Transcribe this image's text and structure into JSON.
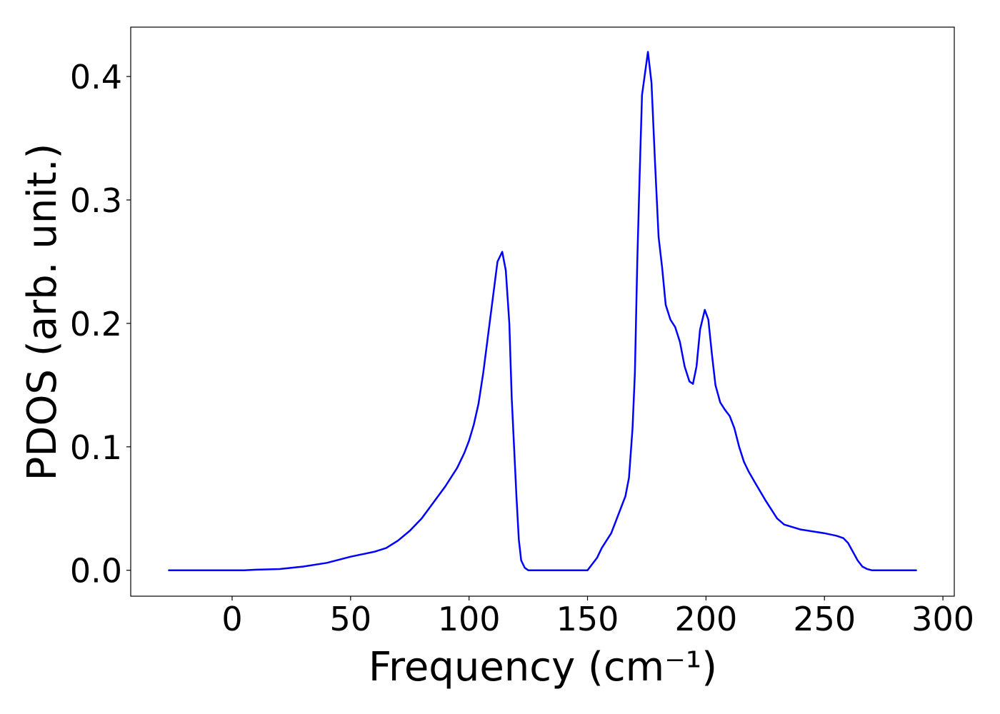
{
  "chart_data": {
    "type": "line",
    "x_label": "Frequency (cm⁻¹)",
    "y_label": "PDOS (arb. unit.)",
    "xlim": [
      -42.8,
      304.8
    ],
    "ylim": [
      -0.021,
      0.44
    ],
    "xticks": [
      0,
      50,
      100,
      150,
      200,
      250,
      300
    ],
    "yticks": [
      {
        "value": 0,
        "label": "0.0"
      },
      0.1,
      0.2,
      0.3,
      0.4
    ],
    "series": [
      {
        "color": "#0000ff",
        "x": [
          -27,
          5,
          10,
          20,
          30,
          40,
          50,
          60,
          65,
          70,
          75,
          80,
          85,
          90,
          95,
          98,
          100,
          102,
          104,
          106,
          108,
          110,
          112,
          114,
          115.5,
          117,
          118,
          120,
          121,
          122,
          123.5,
          125,
          150,
          152,
          154,
          156,
          158,
          160,
          162,
          164,
          166,
          167.5,
          169,
          170,
          171,
          172,
          173,
          175.5,
          177,
          178.5,
          180,
          181.5,
          183,
          185,
          187,
          189,
          191,
          193,
          194.5,
          196,
          197.5,
          199.5,
          201,
          202.5,
          204,
          206,
          208,
          210,
          212,
          214,
          216,
          218,
          221,
          225,
          230,
          233,
          240,
          250,
          255,
          258,
          260,
          262,
          264,
          266,
          268,
          270,
          289
        ],
        "values": [
          0,
          0,
          0.0005,
          0.001,
          0.003,
          0.006,
          0.011,
          0.015,
          0.018,
          0.024,
          0.032,
          0.042,
          0.055,
          0.068,
          0.083,
          0.095,
          0.105,
          0.118,
          0.135,
          0.16,
          0.19,
          0.22,
          0.25,
          0.258,
          0.243,
          0.2,
          0.14,
          0.06,
          0.025,
          0.008,
          0.002,
          0,
          0,
          0.005,
          0.01,
          0.018,
          0.024,
          0.03,
          0.04,
          0.05,
          0.06,
          0.075,
          0.115,
          0.16,
          0.25,
          0.32,
          0.385,
          0.42,
          0.395,
          0.33,
          0.27,
          0.245,
          0.215,
          0.203,
          0.197,
          0.185,
          0.165,
          0.153,
          0.151,
          0.165,
          0.195,
          0.211,
          0.203,
          0.175,
          0.15,
          0.136,
          0.13,
          0.125,
          0.115,
          0.1,
          0.088,
          0.08,
          0.07,
          0.057,
          0.042,
          0.037,
          0.033,
          0.03,
          0.028,
          0.026,
          0.022,
          0.015,
          0.008,
          0.003,
          0.001,
          0,
          0
        ]
      }
    ]
  }
}
